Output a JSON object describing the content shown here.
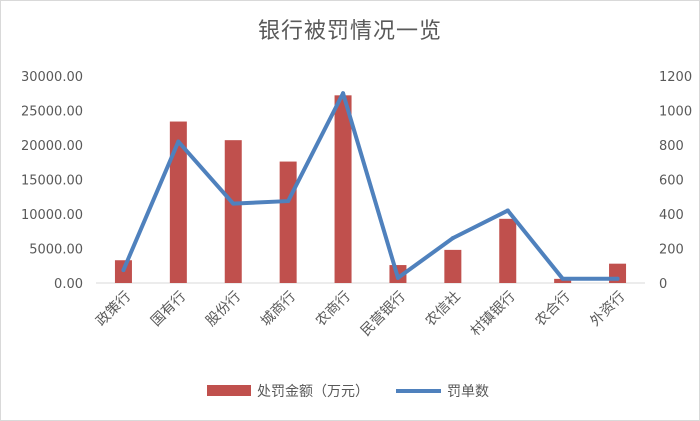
{
  "chart_data": {
    "type": "bar+line",
    "title": "银行被罚情况一览",
    "categories": [
      "政策行",
      "国有行",
      "股份行",
      "城商行",
      "农商行",
      "民营银行",
      "农信社",
      "村镇银行",
      "农合行",
      "外资行"
    ],
    "series": [
      {
        "name": "处罚金额（万元）",
        "type": "bar",
        "axis": "left",
        "color": "#c0504d",
        "values": [
          3300,
          23400,
          20700,
          17600,
          27200,
          2600,
          4800,
          9300,
          600,
          2800
        ]
      },
      {
        "name": "罚单数",
        "type": "line",
        "axis": "right",
        "color": "#4f81bd",
        "values": [
          75,
          820,
          460,
          475,
          1100,
          30,
          260,
          420,
          25,
          25
        ]
      }
    ],
    "y_left": {
      "range": [
        0,
        30000
      ],
      "ticks": [
        "0.00",
        "5000.00",
        "10000.00",
        "15000.00",
        "20000.00",
        "25000.00",
        "30000.00"
      ]
    },
    "y_right": {
      "range": [
        0,
        1200
      ],
      "ticks": [
        "0",
        "200",
        "400",
        "600",
        "800",
        "1000",
        "1200"
      ]
    },
    "grid": false,
    "legend_position": "bottom"
  }
}
